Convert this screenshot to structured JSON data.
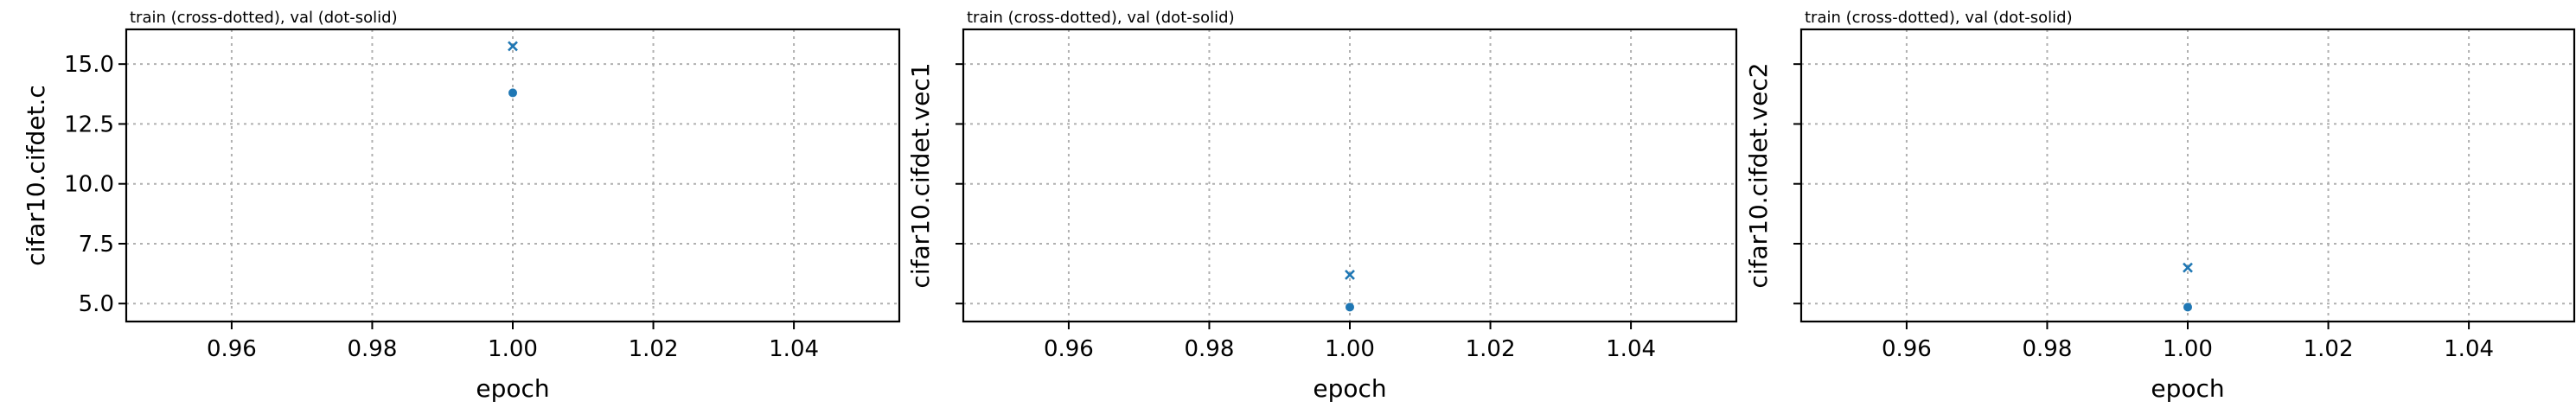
{
  "chart_data": [
    {
      "type": "scatter",
      "title": "train (cross-dotted), val (dot-solid)",
      "xlabel": "epoch",
      "ylabel": "cifar10.cifdet.c",
      "xlim": [
        0.945,
        1.055
      ],
      "ylim": [
        4.25,
        16.45
      ],
      "xticks": [
        0.96,
        0.98,
        1.0,
        1.02,
        1.04
      ],
      "xtick_labels": [
        "0.96",
        "0.98",
        "1.00",
        "1.02",
        "1.04"
      ],
      "yticks": [
        5.0,
        7.5,
        10.0,
        12.5,
        15.0
      ],
      "ytick_labels": [
        "5.0",
        "7.5",
        "10.0",
        "12.5",
        "15.0"
      ],
      "grid": true,
      "color": "#1f77b4",
      "series": [
        {
          "marker": "cross",
          "x": [
            1.0
          ],
          "y": [
            15.75
          ]
        },
        {
          "marker": "dot",
          "x": [
            1.0
          ],
          "y": [
            13.8
          ]
        }
      ]
    },
    {
      "type": "scatter",
      "title": "train (cross-dotted), val (dot-solid)",
      "xlabel": "epoch",
      "ylabel": "cifar10.cifdet.vec1",
      "xlim": [
        0.945,
        1.055
      ],
      "ylim": [
        4.25,
        16.45
      ],
      "xticks": [
        0.96,
        0.98,
        1.0,
        1.02,
        1.04
      ],
      "xtick_labels": [
        "0.96",
        "0.98",
        "1.00",
        "1.02",
        "1.04"
      ],
      "yticks": [
        5.0,
        7.5,
        10.0,
        12.5,
        15.0
      ],
      "ytick_labels": [],
      "grid": true,
      "color": "#1f77b4",
      "series": [
        {
          "marker": "cross",
          "x": [
            1.0
          ],
          "y": [
            6.2
          ]
        },
        {
          "marker": "dot",
          "x": [
            1.0
          ],
          "y": [
            4.85
          ]
        }
      ]
    },
    {
      "type": "scatter",
      "title": "train (cross-dotted), val (dot-solid)",
      "xlabel": "epoch",
      "ylabel": "cifar10.cifdet.vec2",
      "xlim": [
        0.945,
        1.055
      ],
      "ylim": [
        4.25,
        16.45
      ],
      "xticks": [
        0.96,
        0.98,
        1.0,
        1.02,
        1.04
      ],
      "xtick_labels": [
        "0.96",
        "0.98",
        "1.00",
        "1.02",
        "1.04"
      ],
      "yticks": [
        5.0,
        7.5,
        10.0,
        12.5,
        15.0
      ],
      "ytick_labels": [],
      "grid": true,
      "color": "#1f77b4",
      "series": [
        {
          "marker": "cross",
          "x": [
            1.0
          ],
          "y": [
            6.5
          ]
        },
        {
          "marker": "dot",
          "x": [
            1.0
          ],
          "y": [
            4.85
          ]
        }
      ]
    }
  ]
}
